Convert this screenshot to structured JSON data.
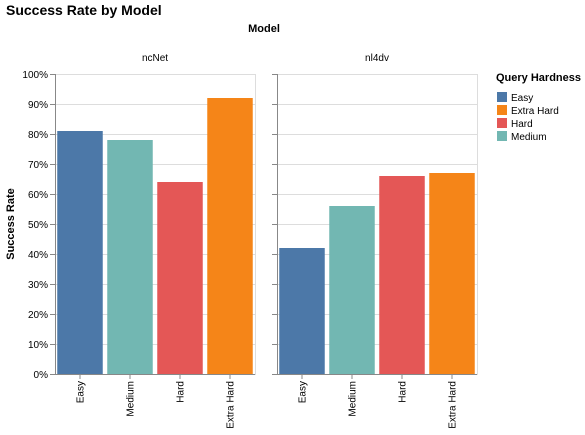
{
  "chart_data": {
    "type": "bar",
    "title": "Success Rate by Model",
    "facet_title": "Model",
    "ylabel": "Success Rate",
    "ylim": [
      0,
      100
    ],
    "y_ticks": [
      0,
      10,
      20,
      30,
      40,
      50,
      60,
      70,
      80,
      90,
      100
    ],
    "y_tick_labels": [
      "0%",
      "10%",
      "20%",
      "30%",
      "40%",
      "50%",
      "60%",
      "70%",
      "80%",
      "90%",
      "100%"
    ],
    "grid": true,
    "categories": [
      "Easy",
      "Medium",
      "Hard",
      "Extra Hard"
    ],
    "facets": [
      {
        "name": "ncNet",
        "values": [
          81,
          78,
          64,
          92
        ]
      },
      {
        "name": "nl4dv",
        "values": [
          42,
          56,
          66,
          67
        ]
      }
    ],
    "legend": {
      "title": "Query Hardness",
      "placement": "right",
      "entries": [
        "Easy",
        "Extra Hard",
        "Hard",
        "Medium"
      ]
    },
    "colors": {
      "Easy": "#4c78a8",
      "Extra Hard": "#f58518",
      "Hard": "#e45756",
      "Medium": "#72b7b2"
    }
  }
}
